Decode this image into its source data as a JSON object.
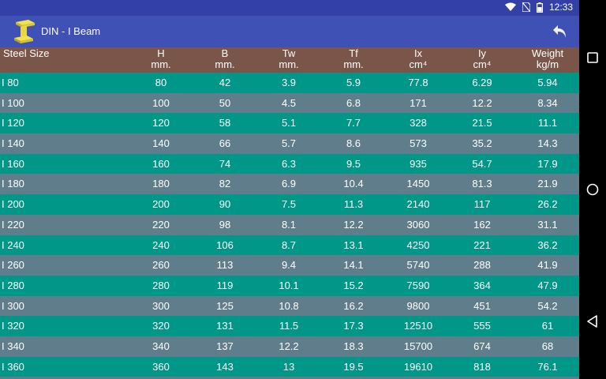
{
  "status": {
    "time": "12:33"
  },
  "appbar": {
    "title": "DIN - I Beam"
  },
  "header": {
    "first": "Steel Size",
    "cols": [
      {
        "name": "H",
        "unit": "mm."
      },
      {
        "name": "B",
        "unit": "mm."
      },
      {
        "name": "Tw",
        "unit": "mm."
      },
      {
        "name": "Tf",
        "unit": "mm."
      },
      {
        "name": "Ix",
        "unit": "cm⁴"
      },
      {
        "name": "Iy",
        "unit": "cm⁴"
      },
      {
        "name": "Weight",
        "unit": "kg/m"
      }
    ]
  },
  "rows": [
    [
      "I 80",
      "80",
      "42",
      "3.9",
      "5.9",
      "77.8",
      "6.29",
      "5.94"
    ],
    [
      "I 100",
      "100",
      "50",
      "4.5",
      "6.8",
      "171",
      "12.2",
      "8.34"
    ],
    [
      "I 120",
      "120",
      "58",
      "5.1",
      "7.7",
      "328",
      "21.5",
      "11.1"
    ],
    [
      "I 140",
      "140",
      "66",
      "5.7",
      "8.6",
      "573",
      "35.2",
      "14.3"
    ],
    [
      "I 160",
      "160",
      "74",
      "6.3",
      "9.5",
      "935",
      "54.7",
      "17.9"
    ],
    [
      "I 180",
      "180",
      "82",
      "6.9",
      "10.4",
      "1450",
      "81.3",
      "21.9"
    ],
    [
      "I 200",
      "200",
      "90",
      "7.5",
      "11.3",
      "2140",
      "117",
      "26.2"
    ],
    [
      "I 220",
      "220",
      "98",
      "8.1",
      "12.2",
      "3060",
      "162",
      "31.1"
    ],
    [
      "I 240",
      "240",
      "106",
      "8.7",
      "13.1",
      "4250",
      "221",
      "36.2"
    ],
    [
      "I 260",
      "260",
      "113",
      "9.4",
      "14.1",
      "5740",
      "288",
      "41.9"
    ],
    [
      "I 280",
      "280",
      "119",
      "10.1",
      "15.2",
      "7590",
      "364",
      "47.9"
    ],
    [
      "I 300",
      "300",
      "125",
      "10.8",
      "16.2",
      "9800",
      "451",
      "54.2"
    ],
    [
      "I 320",
      "320",
      "131",
      "11.5",
      "17.3",
      "12510",
      "555",
      "61"
    ],
    [
      "I 340",
      "340",
      "137",
      "12.2",
      "18.3",
      "15700",
      "674",
      "68"
    ],
    [
      "I 360",
      "360",
      "143",
      "13",
      "19.5",
      "19610",
      "818",
      "76.1"
    ]
  ],
  "colors": {
    "statusbar": "#3240a8",
    "appbar": "#3f51b5",
    "header": "#79554a",
    "row_even": "#009688",
    "row_odd": "#607d8b"
  },
  "icons": [
    "wifi-icon",
    "no-sim-icon",
    "battery-icon",
    "i-beam-logo-icon",
    "undo-arrow-icon",
    "square-recents-icon",
    "circle-home-icon",
    "triangle-back-icon"
  ]
}
